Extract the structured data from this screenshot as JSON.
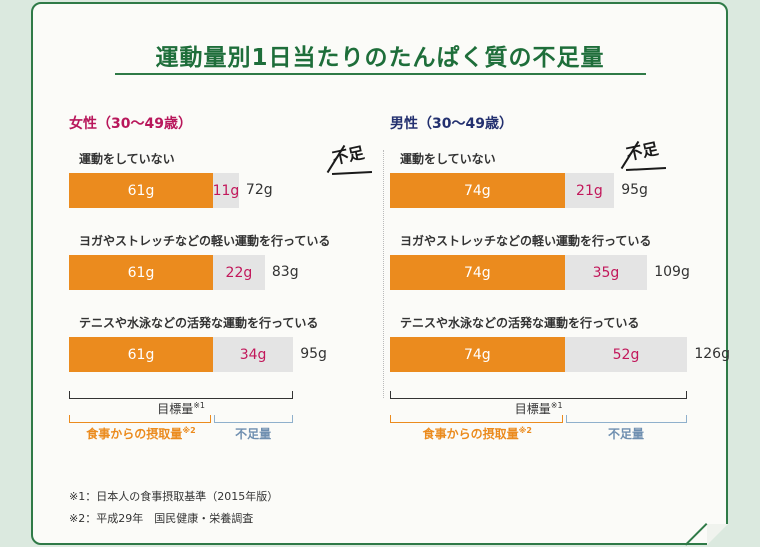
{
  "title": "運動量別1日当たりのたんぱく質の不足量",
  "shortage_mark": "不足",
  "chart_data": {
    "type": "bar",
    "stacked": true,
    "unit": "g",
    "categories": [
      "運動をしていない",
      "ヨガやストレッチなどの軽い運動を行っている",
      "テニスや水泳などの活発な運動を行っている"
    ],
    "panels": [
      {
        "key": "female",
        "title": "女性（30〜49歳）",
        "title_color": "#b8175b",
        "intake": [
          61,
          61,
          61
        ],
        "deficit": [
          11,
          22,
          34
        ],
        "target": [
          72,
          83,
          95
        ]
      },
      {
        "key": "male",
        "title": "男性（30〜49歳）",
        "title_color": "#23306f",
        "intake": [
          74,
          74,
          74
        ],
        "deficit": [
          21,
          35,
          52
        ],
        "target": [
          95,
          109,
          126
        ]
      }
    ],
    "legend": {
      "target": "目標量",
      "target_note": "※1",
      "intake": "食事からの摂取量",
      "intake_note": "※2",
      "deficit": "不足量"
    },
    "colors": {
      "intake": "#eb8b1e",
      "deficit": "#e4e4e4",
      "deficit_text": "#c2185b"
    }
  },
  "footnotes": [
    "※1：日本人の食事摂取基準（2015年版）",
    "※2：平成29年　国民健康・栄養調査"
  ]
}
